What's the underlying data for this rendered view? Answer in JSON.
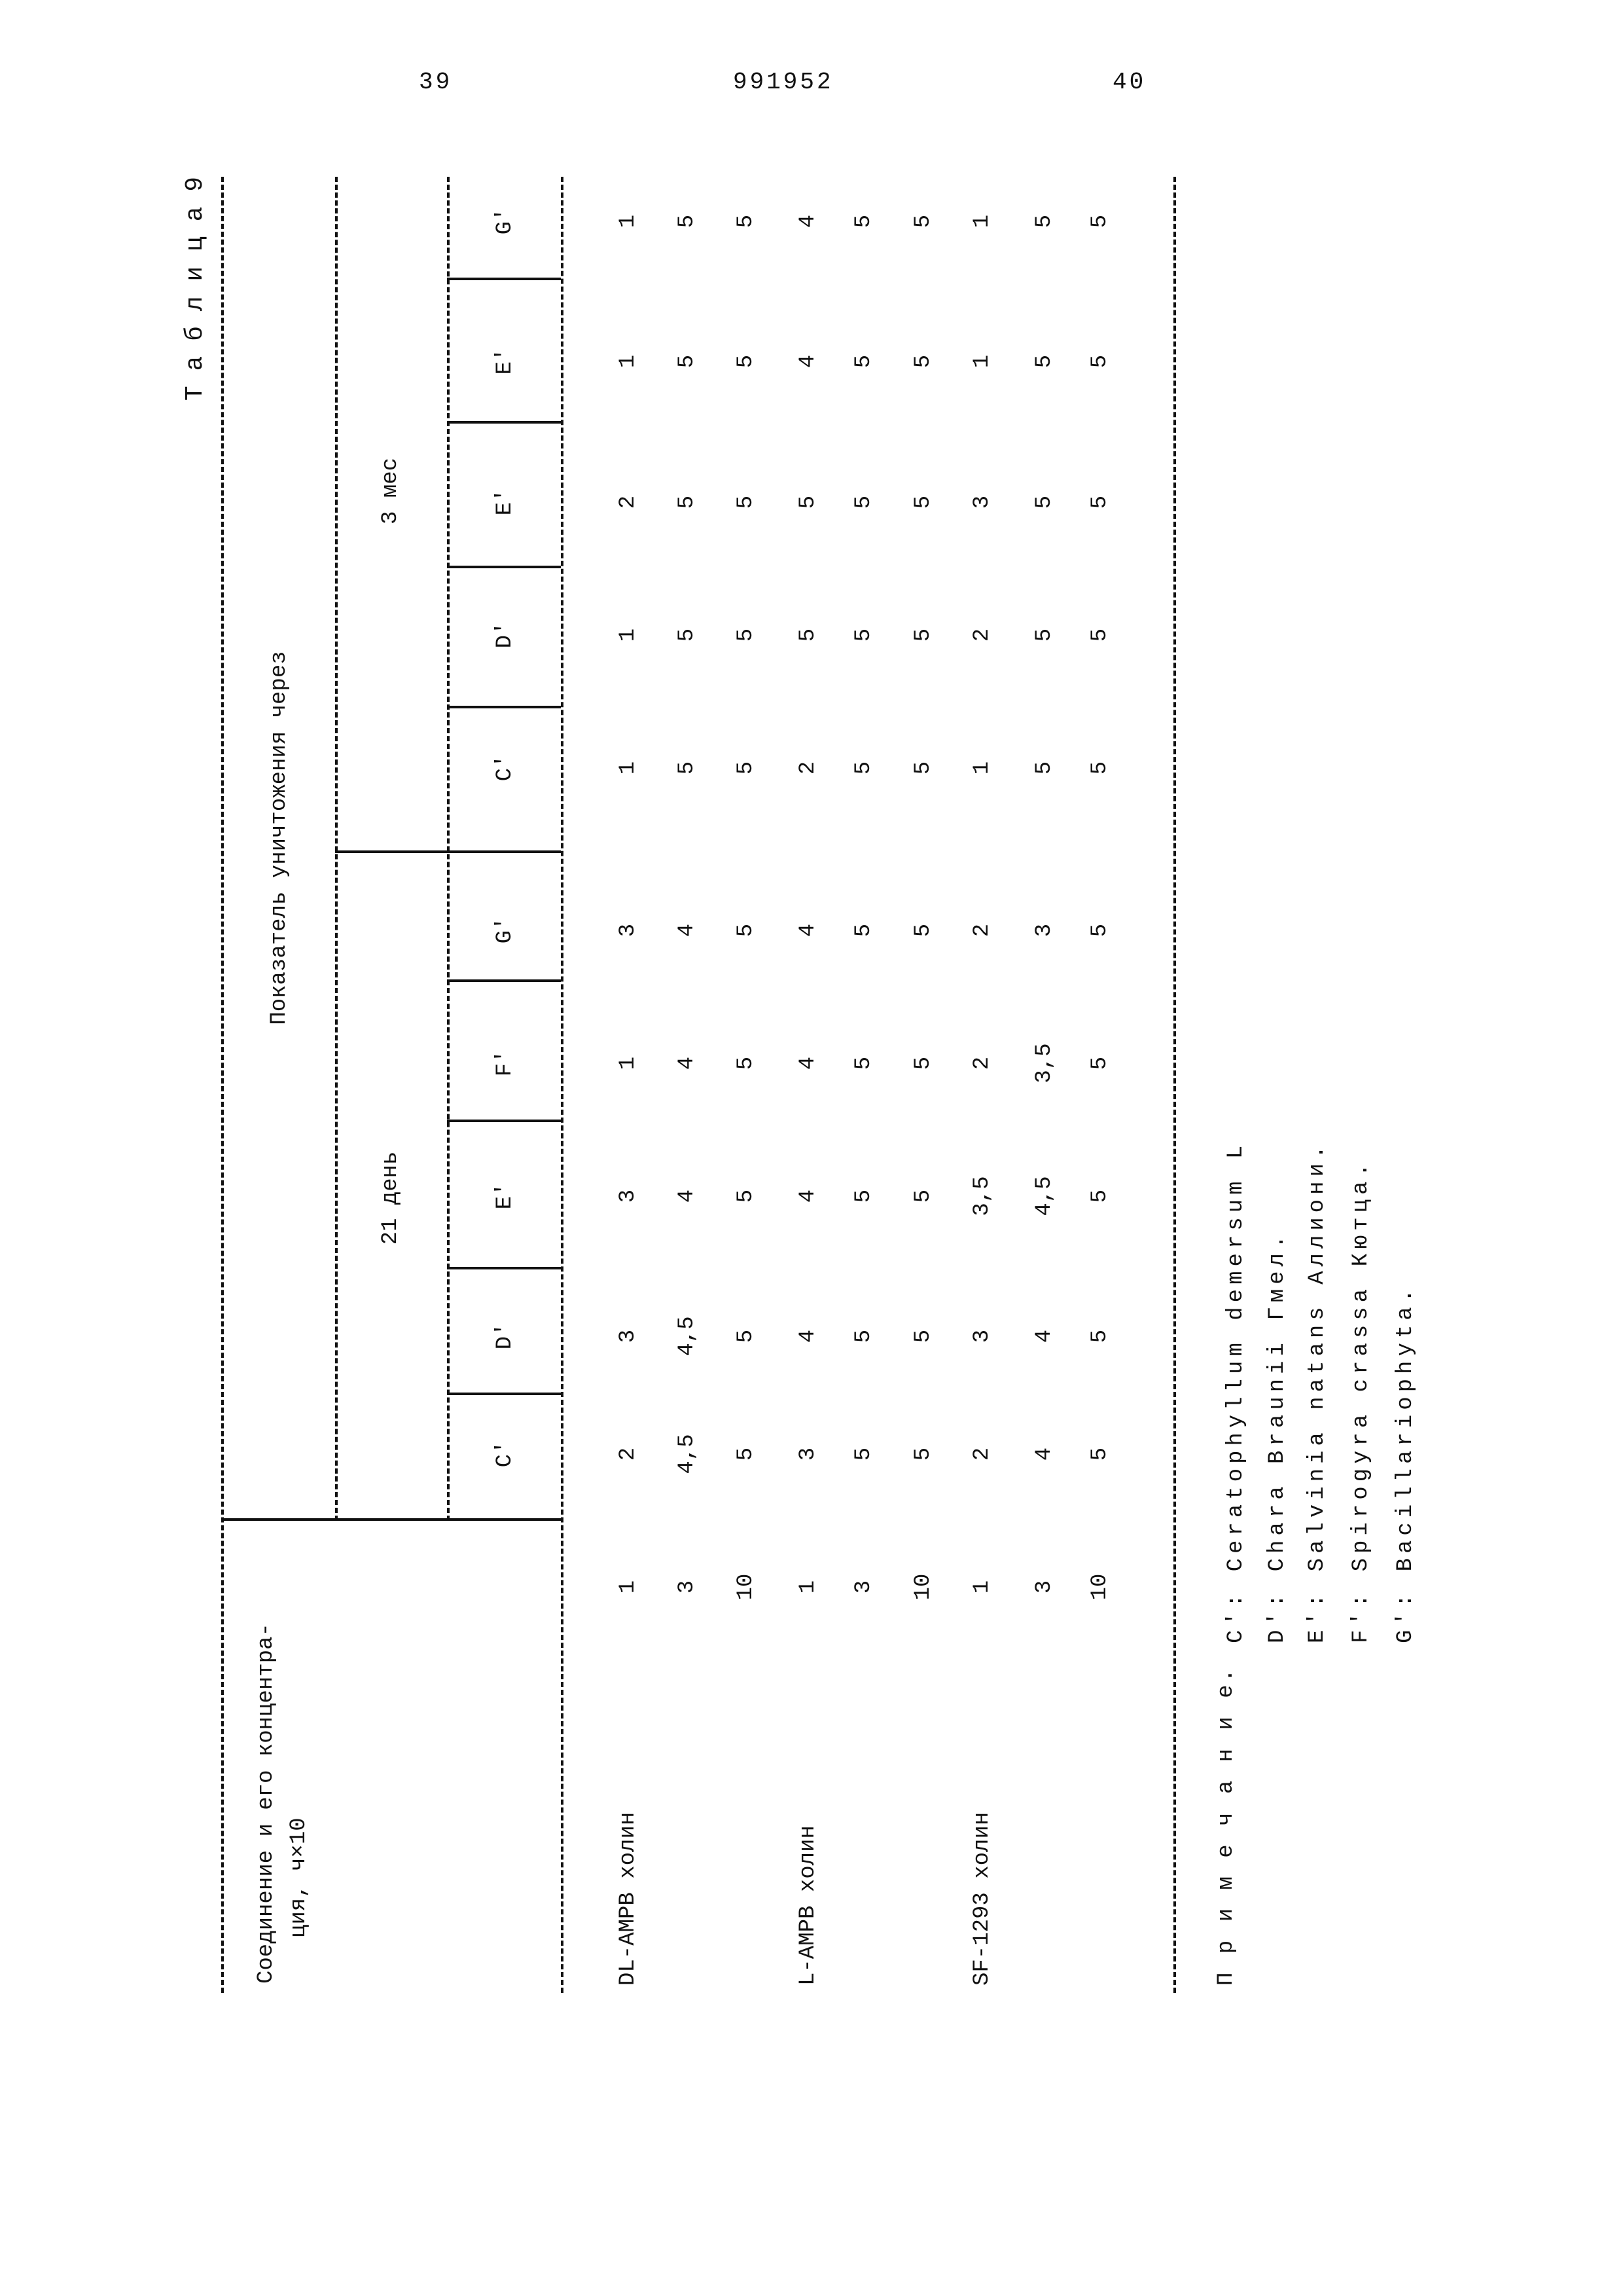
{
  "page_header": {
    "left_page": "39",
    "patent_number": "991952",
    "right_page": "40"
  },
  "table": {
    "label": "Т а б л и ц а  9",
    "compound_header_line1": "Соединение и его концентра-",
    "compound_header_line2": "ция, ч×10",
    "indicator_header": "Показатель уничтожения через",
    "groups": [
      {
        "label": "21 день",
        "columns": [
          "C'",
          "D'",
          "E'",
          "F'",
          "G'"
        ]
      },
      {
        "label": "3 мес",
        "columns": [
          "C'",
          "D'",
          "E'",
          "E'",
          "G'"
        ]
      }
    ],
    "rows": [
      {
        "compound": "DL-AMPB холин",
        "conc": "1",
        "values": [
          "2",
          "3",
          "3",
          "1",
          "3",
          "1",
          "1",
          "2",
          "1",
          "1"
        ]
      },
      {
        "compound": "",
        "conc": "3",
        "values": [
          "4,5",
          "4,5",
          "4",
          "4",
          "4",
          "5",
          "5",
          "5",
          "5",
          "5"
        ]
      },
      {
        "compound": "",
        "conc": "10",
        "values": [
          "5",
          "5",
          "5",
          "5",
          "5",
          "5",
          "5",
          "5",
          "5",
          "5"
        ]
      },
      {
        "compound": "L-AMPB холин",
        "conc": "1",
        "values": [
          "3",
          "4",
          "4",
          "4",
          "4",
          "2",
          "5",
          "5",
          "4",
          "4"
        ]
      },
      {
        "compound": "",
        "conc": "3",
        "values": [
          "5",
          "5",
          "5",
          "5",
          "5",
          "5",
          "5",
          "5",
          "5",
          "5"
        ]
      },
      {
        "compound": "",
        "conc": "10",
        "values": [
          "5",
          "5",
          "5",
          "5",
          "5",
          "5",
          "5",
          "5",
          "5",
          "5"
        ]
      },
      {
        "compound": "SF-1293 холин",
        "conc": "1",
        "values": [
          "2",
          "3",
          "3,5",
          "2",
          "2",
          "1",
          "2",
          "3",
          "1",
          "1"
        ]
      },
      {
        "compound": "",
        "conc": "3",
        "values": [
          "4",
          "4",
          "4,5",
          "3,5",
          "3",
          "5",
          "5",
          "5",
          "5",
          "5"
        ]
      },
      {
        "compound": "",
        "conc": "10",
        "values": [
          "5",
          "5",
          "5",
          "5",
          "5",
          "5",
          "5",
          "5",
          "5",
          "5"
        ]
      }
    ]
  },
  "note": {
    "label": "П р и м е ч а н и е.",
    "lines": [
      "C': Ceratophyllum demersum L",
      "D': Chara Braunii  Гмел.",
      "E': Salvinia natans  Аллиони.",
      "F': Spirogyra crassa  Кютца.",
      "G': Bacillariophyta."
    ]
  }
}
